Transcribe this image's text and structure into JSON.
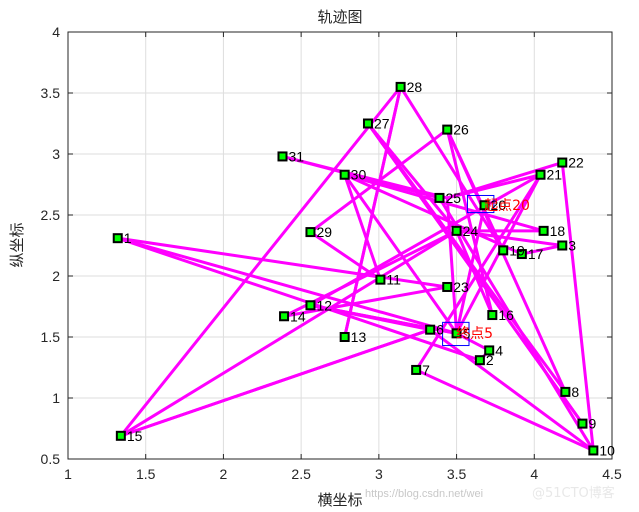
{
  "chart_data": {
    "type": "line",
    "title": "轨迹图",
    "xlabel": "横坐标",
    "ylabel": "纵坐标",
    "xlim": [
      1,
      4.5
    ],
    "ylim": [
      0.5,
      4
    ],
    "xticks": [
      1,
      1.5,
      2,
      2.5,
      3,
      3.5,
      4,
      4.5
    ],
    "yticks": [
      0.5,
      1,
      1.5,
      2,
      2.5,
      3,
      3.5,
      4
    ],
    "xtick_labels": [
      "1",
      "1.5",
      "2",
      "2.5",
      "3",
      "3.5",
      "4",
      "4.5"
    ],
    "ytick_labels": [
      "0.5",
      "1",
      "1.5",
      "2",
      "2.5",
      "3",
      "3.5",
      "4"
    ],
    "grid": true,
    "line_color": "#ff00ff",
    "marker_fill": "#00ff00",
    "marker_edge": "#000000",
    "points": [
      {
        "label": "1",
        "x": 1.32,
        "y": 2.31
      },
      {
        "label": "2",
        "x": 3.65,
        "y": 1.31
      },
      {
        "label": "4",
        "x": 3.71,
        "y": 1.39
      },
      {
        "label": "5",
        "x": 3.5,
        "y": 1.53
      },
      {
        "label": "6",
        "x": 3.33,
        "y": 1.56
      },
      {
        "label": "7",
        "x": 3.24,
        "y": 1.23
      },
      {
        "label": "8",
        "x": 4.2,
        "y": 1.05
      },
      {
        "label": "9",
        "x": 4.31,
        "y": 0.79
      },
      {
        "label": "10",
        "x": 4.38,
        "y": 0.57
      },
      {
        "label": "11",
        "x": 3.01,
        "y": 1.97
      },
      {
        "label": "12",
        "x": 2.56,
        "y": 1.76
      },
      {
        "label": "13",
        "x": 2.78,
        "y": 1.5
      },
      {
        "label": "14",
        "x": 2.39,
        "y": 1.67
      },
      {
        "label": "15",
        "x": 1.34,
        "y": 0.69
      },
      {
        "label": "16",
        "x": 3.73,
        "y": 1.68
      },
      {
        "label": "17",
        "x": 3.92,
        "y": 2.18
      },
      {
        "label": "18",
        "x": 4.06,
        "y": 2.37
      },
      {
        "label": "19",
        "x": 3.8,
        "y": 2.21
      },
      {
        "label": "20",
        "x": 3.68,
        "y": 2.58
      },
      {
        "label": "21",
        "x": 4.04,
        "y": 2.83
      },
      {
        "label": "22",
        "x": 4.18,
        "y": 2.93
      },
      {
        "label": "23",
        "x": 3.44,
        "y": 1.91
      },
      {
        "label": "24",
        "x": 3.5,
        "y": 2.37
      },
      {
        "label": "25",
        "x": 3.39,
        "y": 2.64
      },
      {
        "label": "26",
        "x": 3.44,
        "y": 3.2
      },
      {
        "label": "27",
        "x": 2.93,
        "y": 3.25
      },
      {
        "label": "28",
        "x": 3.14,
        "y": 3.55
      },
      {
        "label": "29",
        "x": 2.56,
        "y": 2.36
      },
      {
        "label": "30",
        "x": 2.78,
        "y": 2.83
      },
      {
        "label": "31",
        "x": 2.38,
        "y": 2.98
      },
      {
        "label": "3",
        "x": 4.18,
        "y": 2.25
      }
    ],
    "path": [
      [
        1.32,
        2.31
      ],
      [
        3.65,
        1.31
      ],
      [
        3.71,
        1.39
      ],
      [
        3.5,
        1.53
      ],
      [
        3.44,
        2.64
      ],
      [
        4.18,
        2.93
      ],
      [
        4.38,
        0.57
      ],
      [
        3.39,
        2.64
      ],
      [
        2.38,
        2.98
      ],
      [
        3.44,
        2.64
      ],
      [
        4.04,
        2.83
      ],
      [
        3.5,
        1.53
      ],
      [
        2.78,
        2.83
      ],
      [
        3.01,
        1.97
      ],
      [
        2.56,
        2.36
      ],
      [
        3.44,
        3.2
      ],
      [
        3.73,
        1.68
      ],
      [
        3.5,
        2.37
      ],
      [
        2.93,
        3.25
      ],
      [
        4.31,
        0.79
      ],
      [
        2.93,
        3.25
      ],
      [
        4.2,
        1.05
      ],
      [
        3.44,
        3.2
      ],
      [
        3.8,
        2.21
      ],
      [
        3.14,
        3.55
      ],
      [
        2.78,
        1.5
      ],
      [
        3.14,
        3.55
      ],
      [
        1.34,
        0.69
      ],
      [
        3.5,
        2.37
      ],
      [
        4.06,
        2.37
      ],
      [
        2.78,
        2.83
      ],
      [
        3.92,
        2.18
      ],
      [
        4.18,
        2.25
      ],
      [
        3.5,
        2.37
      ],
      [
        2.39,
        1.67
      ],
      [
        3.44,
        1.91
      ],
      [
        1.32,
        2.31
      ],
      [
        3.5,
        1.53
      ],
      [
        2.56,
        1.76
      ],
      [
        4.04,
        2.83
      ],
      [
        3.24,
        1.23
      ],
      [
        4.38,
        0.57
      ],
      [
        3.33,
        1.56
      ],
      [
        1.34,
        0.69
      ],
      [
        3.33,
        1.56
      ],
      [
        2.56,
        1.76
      ],
      [
        3.5,
        1.53
      ],
      [
        3.68,
        2.58
      ]
    ],
    "annotations": [
      {
        "text": "起点20",
        "x": 3.69,
        "y": 2.59
      },
      {
        "text": "终点5",
        "x": 3.51,
        "y": 1.54
      }
    ],
    "start_box": {
      "x0": 3.57,
      "x1": 3.74,
      "y0": 2.52,
      "y1": 2.66
    },
    "end_box": {
      "x0": 3.41,
      "x1": 3.58,
      "y0": 1.43,
      "y1": 1.62
    }
  },
  "watermark": {
    "left": "https://blog.csdn.net/wei",
    "right": "@51CTO博客"
  }
}
